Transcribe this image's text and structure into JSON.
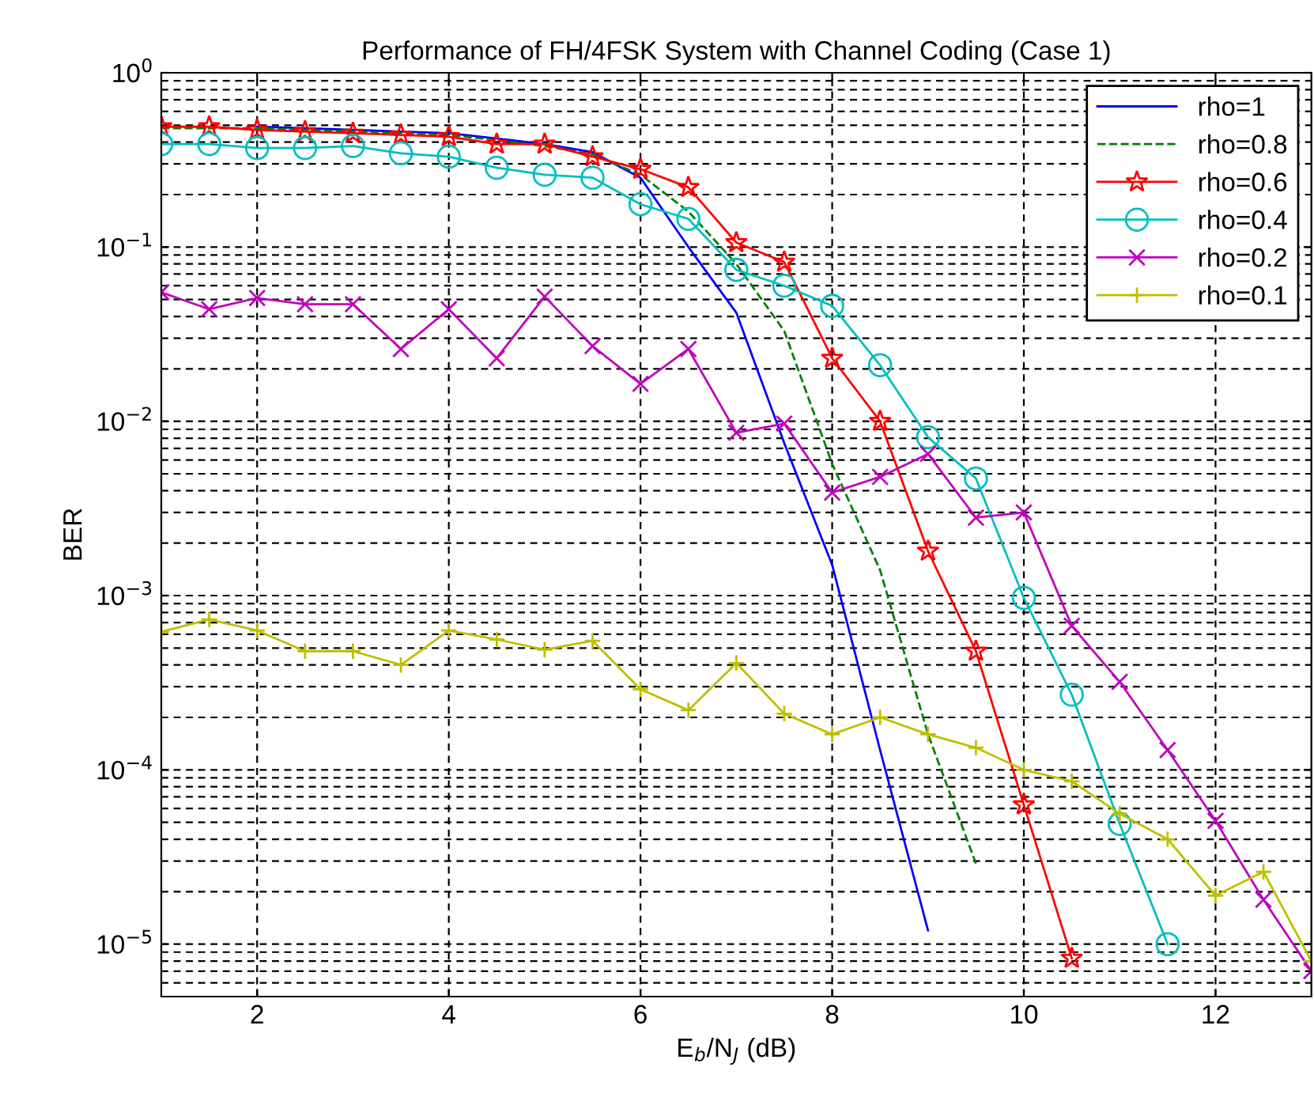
{
  "chart_data": {
    "type": "line",
    "title": "Performance of FH/4FSK System with Channel Coding (Case 1)",
    "xlabel": "E$_{b}$/N$_{J}$ (dB)",
    "ylabel": "BER",
    "log": "y",
    "grid": true,
    "legend": "top right",
    "xlim": [
      1,
      13
    ],
    "xticks": [
      2,
      4,
      6,
      8,
      10,
      12
    ],
    "ylim": [
      5e-06,
      1
    ],
    "yticks": [
      {
        "value": 1e-05,
        "label": "10$^{−5}$"
      },
      {
        "value": 0.0001,
        "label": "10$^{−4}$"
      },
      {
        "value": 0.001,
        "label": "10$^{−3}$"
      },
      {
        "value": 0.01,
        "label": "10$^{−2}$"
      },
      {
        "value": 0.1,
        "label": "10$^{−1}$"
      },
      {
        "value": 1,
        "label": "10$^{0}$"
      }
    ],
    "series": [
      {
        "name": "rho=1",
        "color": "#0000ff",
        "marker": "none",
        "line_style": "solid",
        "x": [
          2,
          2.5,
          3,
          3.5,
          4,
          4.5,
          5,
          5.5,
          6,
          6.5,
          7,
          7.5,
          8,
          8.5,
          9
        ],
        "values": [
          0.49,
          0.48,
          0.47,
          0.46,
          0.45,
          0.42,
          0.39,
          0.35,
          0.25,
          0.1,
          0.042,
          0.0075,
          0.0015,
          0.00013,
          1.2e-05
        ]
      },
      {
        "name": "rho=0.8",
        "color": "#008000",
        "marker": "none",
        "line_style": "dashed",
        "x": [
          1,
          1.5,
          2,
          2.5,
          3,
          3.5,
          4,
          4.5,
          5,
          5.5,
          6,
          6.5,
          7,
          7.5,
          8,
          8.5,
          9,
          9.5
        ],
        "values": [
          0.48,
          0.48,
          0.48,
          0.47,
          0.46,
          0.45,
          0.44,
          0.41,
          0.38,
          0.34,
          0.26,
          0.16,
          0.08,
          0.033,
          0.0057,
          0.0014,
          0.00016,
          2.9e-05
        ]
      },
      {
        "name": "rho=0.6",
        "color": "#ff0000",
        "marker": "star",
        "line_style": "solid",
        "x": [
          1,
          1.5,
          2,
          2.5,
          3,
          3.5,
          4,
          4.5,
          5,
          5.5,
          6,
          6.5,
          7,
          7.5,
          8,
          8.5,
          9,
          9.5,
          10,
          10.5
        ],
        "values": [
          0.49,
          0.49,
          0.47,
          0.46,
          0.45,
          0.44,
          0.43,
          0.39,
          0.39,
          0.33,
          0.28,
          0.22,
          0.106,
          0.082,
          0.023,
          0.01,
          0.0018,
          0.00048,
          6.3e-05,
          8.3e-06
        ]
      },
      {
        "name": "rho=0.4",
        "color": "#00bfbf",
        "marker": "circle",
        "line_style": "solid",
        "x": [
          1,
          1.5,
          2,
          2.5,
          3,
          3.5,
          4,
          4.5,
          5,
          5.5,
          6,
          6.5,
          7,
          7.5,
          8,
          8.5,
          9,
          9.5,
          10,
          10.5,
          11,
          11.5
        ],
        "values": [
          0.39,
          0.39,
          0.37,
          0.37,
          0.38,
          0.345,
          0.33,
          0.285,
          0.26,
          0.25,
          0.176,
          0.145,
          0.074,
          0.06,
          0.046,
          0.021,
          0.0081,
          0.0047,
          0.00097,
          0.00027,
          4.9e-05,
          1e-05
        ]
      },
      {
        "name": "rho=0.2",
        "color": "#bf00bf",
        "marker": "cross",
        "line_style": "solid",
        "x": [
          1,
          1.5,
          2,
          2.5,
          3,
          3.5,
          4,
          4.5,
          5,
          5.5,
          6,
          6.5,
          7,
          7.5,
          8,
          8.5,
          9,
          9.5,
          10,
          10.5,
          11,
          11.5,
          12,
          12.5,
          13
        ],
        "values": [
          0.055,
          0.044,
          0.051,
          0.047,
          0.047,
          0.026,
          0.044,
          0.023,
          0.052,
          0.027,
          0.0164,
          0.026,
          0.0086,
          0.0097,
          0.0039,
          0.0048,
          0.0065,
          0.0028,
          0.003,
          0.00067,
          0.00032,
          0.00013,
          5.1e-05,
          1.8e-05,
          7e-06
        ]
      },
      {
        "name": "rho=0.1",
        "color": "#bfbf00",
        "marker": "plus",
        "line_style": "solid",
        "x": [
          1,
          1.5,
          2,
          2.5,
          3,
          3.5,
          4,
          4.5,
          5,
          5.5,
          6,
          6.5,
          7,
          7.5,
          8,
          8.5,
          9,
          9.5,
          10,
          10.5,
          11,
          11.5,
          12,
          12.5,
          13
        ],
        "values": [
          0.00062,
          0.00073,
          0.00063,
          0.00048,
          0.00048,
          0.0004,
          0.00063,
          0.00056,
          0.00049,
          0.00055,
          0.00029,
          0.00022,
          0.00041,
          0.00021,
          0.00016,
          0.0002,
          0.00016,
          0.000134,
          0.0001,
          8.6e-05,
          5.6e-05,
          4e-05,
          1.9e-05,
          2.6e-05,
          8e-06
        ]
      }
    ]
  }
}
